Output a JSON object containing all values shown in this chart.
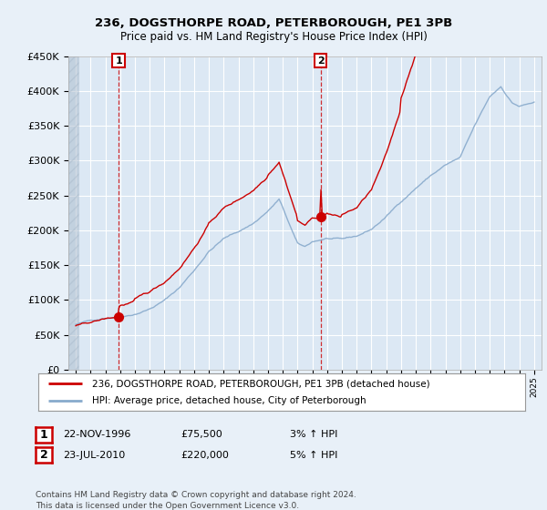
{
  "title1": "236, DOGSTHORPE ROAD, PETERBOROUGH, PE1 3PB",
  "title2": "Price paid vs. HM Land Registry's House Price Index (HPI)",
  "legend_line1": "236, DOGSTHORPE ROAD, PETERBOROUGH, PE1 3PB (detached house)",
  "legend_line2": "HPI: Average price, detached house, City of Peterborough",
  "annotation1_label": "1",
  "annotation1_date": "22-NOV-1996",
  "annotation1_price": "£75,500",
  "annotation1_hpi": "3% ↑ HPI",
  "annotation2_label": "2",
  "annotation2_date": "23-JUL-2010",
  "annotation2_price": "£220,000",
  "annotation2_hpi": "5% ↑ HPI",
  "footer": "Contains HM Land Registry data © Crown copyright and database right 2024.\nThis data is licensed under the Open Government Licence v3.0.",
  "sale1_x": 1996.9,
  "sale1_y": 75500,
  "sale2_x": 2010.55,
  "sale2_y": 220000,
  "ylim": [
    0,
    450000
  ],
  "xlim_start": 1993.5,
  "xlim_end": 2025.5,
  "hatch_end": 1994.2,
  "bg_color": "#e8f0f8",
  "plot_bg": "#dce8f4",
  "grid_color": "#ffffff",
  "red_line_color": "#cc0000",
  "blue_line_color": "#88aacc"
}
